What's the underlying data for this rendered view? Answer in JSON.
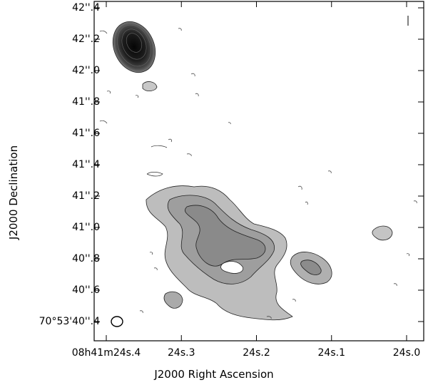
{
  "axes": {
    "xlabel": "J2000 Right Ascension",
    "ylabel": "J2000 Declination",
    "y_ticks": [
      {
        "text": "42''.4",
        "value": 42.4
      },
      {
        "text": "42''.2",
        "value": 42.2
      },
      {
        "text": "42''.0",
        "value": 42.0
      },
      {
        "text": "41''.8",
        "value": 41.8
      },
      {
        "text": "41''.6",
        "value": 41.6
      },
      {
        "text": "41''.4",
        "value": 41.4
      },
      {
        "text": "41''.2",
        "value": 41.2
      },
      {
        "text": "41''.0",
        "value": 41.0
      },
      {
        "text": "40''.8",
        "value": 40.8
      },
      {
        "text": "40''.6",
        "value": 40.6
      },
      {
        "text": "70°53'40''.4",
        "value": 40.4
      }
    ],
    "x_ticks": [
      {
        "text": "08h41m24s.4",
        "value": 24.4
      },
      {
        "text": "24s.3",
        "value": 24.3
      },
      {
        "text": "24s.2",
        "value": 24.2
      },
      {
        "text": "24s.1",
        "value": 24.1
      },
      {
        "text": "24s.0",
        "value": 24.0
      }
    ]
  },
  "image": {
    "type": "radio contour map (greyscale with contours)",
    "colors": {
      "frame": "#000000",
      "contour": "#222222",
      "emission": "#9a9a9a",
      "core": "#101010"
    }
  }
}
